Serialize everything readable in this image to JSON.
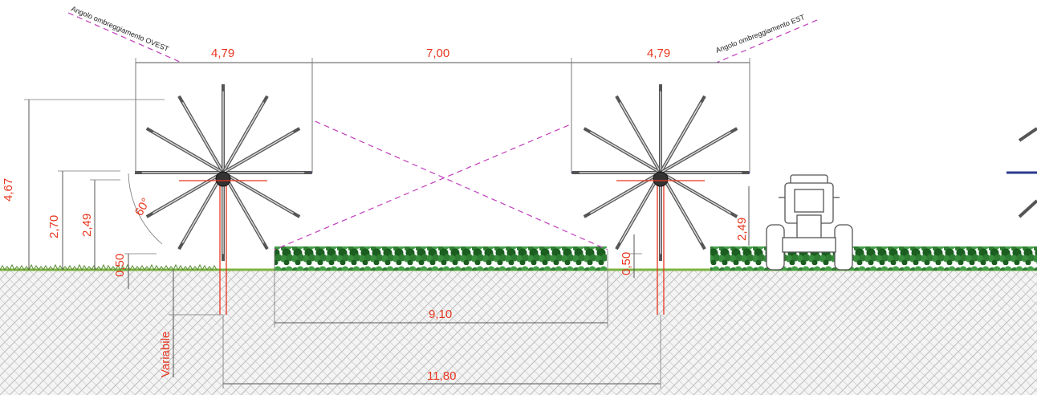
{
  "annotations": {
    "shading_west": "Angolo ombreggiamento OVEST",
    "shading_east": "Angolo ombreggiamento EST"
  },
  "dimensions": {
    "width_left": "4,79",
    "spacing": "7,00",
    "width_right": "4,79",
    "height_max": "4,67",
    "height_axis": "2,70",
    "height_panel": "2,49",
    "height_panel_right": "2,49",
    "clearance_left": "0,50",
    "clearance_right": "0,50",
    "angle": "60°",
    "free_strip": "9,10",
    "pitch": "11,80",
    "embedment": "Variabile"
  },
  "colors": {
    "dimension_text": "#e8361f",
    "shading_line": "#c23dbd",
    "crop": "#2e7d32",
    "soil_hatch": "#bdbdbd",
    "tracker_bar": "#2b3a8f"
  }
}
